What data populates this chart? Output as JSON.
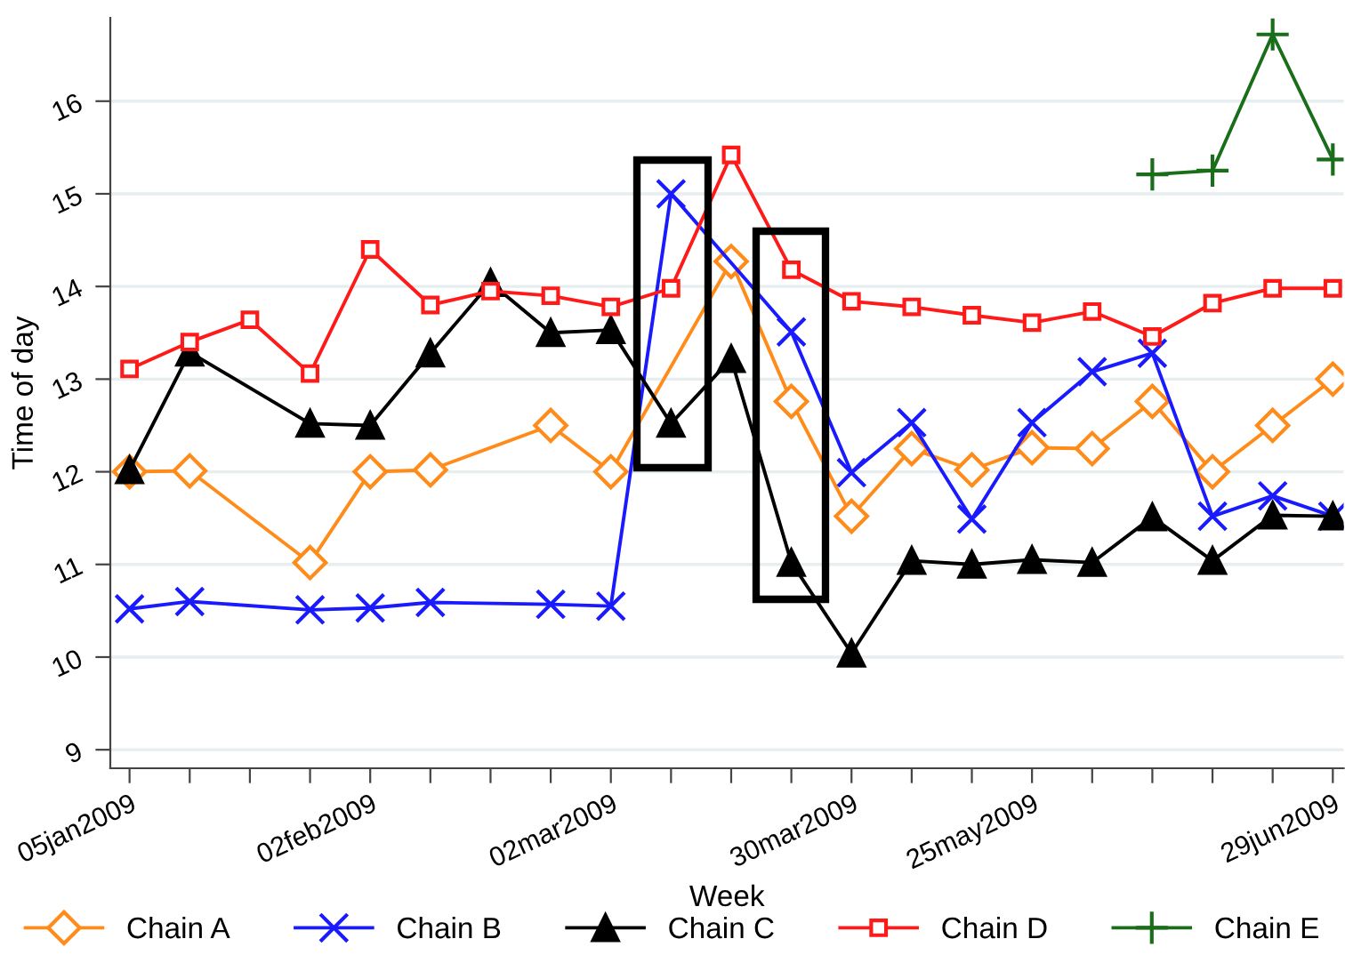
{
  "chart_data": {
    "type": "line",
    "xlabel": "Week",
    "ylabel": "Time of day",
    "categories": [
      "05jan2009",
      null,
      null,
      null,
      "02feb2009",
      null,
      null,
      null,
      "02mar2009",
      null,
      null,
      null,
      "30mar2009",
      null,
      null,
      "25may2009",
      null,
      null,
      null,
      null,
      "29jun2009"
    ],
    "series": [
      {
        "name": "Chain A",
        "color": "#ff8c1a",
        "marker": "diamond",
        "values": [
          12.0,
          12.01,
          null,
          11.02,
          12.0,
          12.02,
          null,
          12.5,
          12.0,
          null,
          14.27,
          12.76,
          11.52,
          12.25,
          12.02,
          12.26,
          12.25,
          12.76,
          12.0,
          12.5,
          13.0
        ]
      },
      {
        "name": "Chain B",
        "color": "#1a1aff",
        "marker": "cross",
        "values": [
          10.52,
          10.6,
          null,
          10.51,
          10.53,
          10.59,
          null,
          10.57,
          10.55,
          15.0,
          null,
          13.51,
          11.99,
          12.53,
          11.49,
          12.53,
          13.08,
          13.28,
          11.52,
          11.74,
          11.52
        ]
      },
      {
        "name": "Chain C",
        "color": "#000000",
        "marker": "triangle",
        "values": [
          12.02,
          13.29,
          null,
          12.52,
          12.5,
          13.28,
          14.04,
          13.5,
          13.53,
          12.52,
          13.22,
          11.02,
          10.04,
          11.04,
          11.0,
          11.05,
          11.02,
          11.51,
          11.04,
          11.53,
          11.52
        ]
      },
      {
        "name": "Chain D",
        "color": "#ff1a1a",
        "marker": "square",
        "values": [
          13.11,
          13.4,
          13.64,
          13.06,
          14.4,
          13.8,
          13.95,
          13.9,
          13.78,
          13.98,
          15.42,
          14.18,
          13.84,
          13.78,
          13.69,
          13.61,
          13.73,
          13.46,
          13.82,
          13.98,
          13.98
        ]
      },
      {
        "name": "Chain E",
        "color": "#1a6e1a",
        "marker": "plus",
        "values": [
          null,
          null,
          null,
          null,
          null,
          null,
          null,
          null,
          null,
          null,
          null,
          null,
          null,
          null,
          null,
          null,
          null,
          15.21,
          15.25,
          16.72,
          15.37
        ]
      }
    ],
    "ylim": [
      8.8,
      16.9
    ],
    "yticks": [
      9,
      10,
      11,
      12,
      13,
      14,
      15,
      16
    ],
    "grid": "y",
    "legend": "bottom",
    "line_style": "solid"
  }
}
